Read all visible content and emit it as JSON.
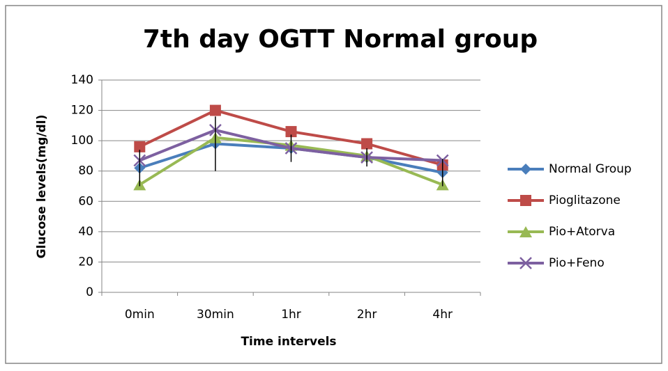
{
  "chart_data": {
    "type": "line",
    "title": "7th day OGTT Normal group",
    "x_label": "Time intervels",
    "y_label": "Glucose levels(mg/dl)",
    "categories": [
      "0min",
      "30min",
      "1hr",
      "2hr",
      "4hr"
    ],
    "series": [
      {
        "name": "Normal Group",
        "color": "#4a7ebb",
        "marker": "diamond",
        "values": [
          82,
          98,
          95,
          89,
          79
        ],
        "errors": [
          12,
          18,
          9,
          6,
          9
        ]
      },
      {
        "name": "Pioglitazone",
        "color": "#be4b48",
        "marker": "square",
        "values": [
          96,
          120,
          106,
          98,
          84
        ]
      },
      {
        "name": "Pio+Atorva",
        "color": "#98b954",
        "marker": "triangle",
        "values": [
          71,
          102,
          97,
          90,
          71
        ]
      },
      {
        "name": "Pio+Feno",
        "color": "#7d60a0",
        "marker": "x",
        "values": [
          87,
          107,
          95,
          89,
          87
        ]
      }
    ],
    "ylim": [
      0,
      140
    ],
    "yticks": [
      0,
      20,
      40,
      60,
      80,
      100,
      120,
      140
    ],
    "grid": true,
    "legend": "right"
  }
}
